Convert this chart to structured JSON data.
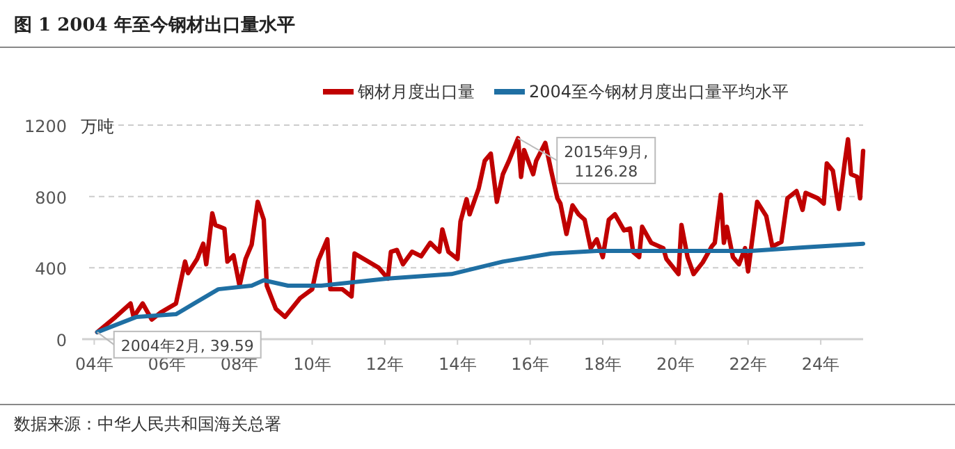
{
  "chart_data": {
    "type": "line",
    "title": "图 1 2004 年至今钢材出口量水平",
    "ylabel": "万吨",
    "annotations": [
      {
        "text": "2004年2月, 39.59",
        "x": "2004-02",
        "y": 39.59
      },
      {
        "text": "2015年9月,\n1126.28",
        "x": "2015-09",
        "y": 1126.28
      },
      "数据来源：中华人民共和国海关总署"
    ],
    "xlim": [
      "2003-09",
      "2025-03"
    ],
    "xticks": [
      {
        "value": "2004-01",
        "label": "04年"
      },
      {
        "value": "2006-01",
        "label": "06年"
      },
      {
        "value": "2008-01",
        "label": "08年"
      },
      {
        "value": "2010-01",
        "label": "10年"
      },
      {
        "value": "2012-01",
        "label": "12年"
      },
      {
        "value": "2014-01",
        "label": "14年"
      },
      {
        "value": "2016-01",
        "label": "16年"
      },
      {
        "value": "2018-01",
        "label": "18年"
      },
      {
        "value": "2020-01",
        "label": "20年"
      },
      {
        "value": "2022-01",
        "label": "22年"
      },
      {
        "value": "2024-01",
        "label": "24年"
      }
    ],
    "ylim": [
      0,
      1200
    ],
    "yticks": [
      0,
      400,
      800,
      1200
    ],
    "grid": "y",
    "legend": "top",
    "line_style": "solid",
    "marker": "none",
    "series": [
      {
        "name": "钢材月度出口量",
        "color": "#c00000",
        "x": [
          "2004-02",
          "2004-08",
          "2005-01",
          "2005-02",
          "2005-05",
          "2005-08",
          "2005-11",
          "2006-04",
          "2006-07",
          "2006-08",
          "2006-11",
          "2007-01",
          "2007-02",
          "2007-04",
          "2007-05",
          "2007-08",
          "2007-09",
          "2007-11",
          "2008-01",
          "2008-03",
          "2008-05",
          "2008-07",
          "2008-09",
          "2008-10",
          "2009-01",
          "2009-04",
          "2009-09",
          "2010-01",
          "2010-03",
          "2010-06",
          "2010-07",
          "2010-11",
          "2011-02",
          "2011-03",
          "2011-07",
          "2011-11",
          "2012-02",
          "2012-03",
          "2012-05",
          "2012-07",
          "2012-10",
          "2013-01",
          "2013-04",
          "2013-07",
          "2013-08",
          "2013-10",
          "2014-01",
          "2014-02",
          "2014-04",
          "2014-05",
          "2014-08",
          "2014-10",
          "2014-12",
          "2015-02",
          "2015-04",
          "2015-06",
          "2015-09",
          "2015-10",
          "2015-11",
          "2016-02",
          "2016-03",
          "2016-06",
          "2016-08",
          "2016-10",
          "2016-11",
          "2017-01",
          "2017-03",
          "2017-05",
          "2017-07",
          "2017-09",
          "2017-11",
          "2018-01",
          "2018-03",
          "2018-05",
          "2018-08",
          "2018-10",
          "2018-11",
          "2019-01",
          "2019-02",
          "2019-05",
          "2019-09",
          "2019-10",
          "2020-02",
          "2020-03",
          "2020-05",
          "2020-07",
          "2020-10",
          "2021-01",
          "2021-02",
          "2021-04",
          "2021-05",
          "2021-06",
          "2021-08",
          "2021-10",
          "2021-12",
          "2022-01",
          "2022-04",
          "2022-07",
          "2022-09",
          "2022-12",
          "2023-02",
          "2023-05",
          "2023-07",
          "2023-08",
          "2023-12",
          "2024-02",
          "2024-03",
          "2024-05",
          "2024-07",
          "2024-09",
          "2024-10",
          "2024-11",
          "2025-01",
          "2025-02",
          "2025-03"
        ],
        "values": [
          39.59,
          124,
          200,
          125,
          200,
          110,
          150,
          200,
          435,
          370,
          450,
          535,
          420,
          705,
          640,
          620,
          435,
          470,
          300,
          450,
          530,
          770,
          670,
          300,
          170,
          125,
          230,
          280,
          440,
          560,
          280,
          280,
          240,
          480,
          440,
          400,
          340,
          490,
          500,
          420,
          490,
          465,
          540,
          490,
          615,
          490,
          450,
          660,
          785,
          700,
          845,
          1000,
          1040,
          770,
          925,
          1000,
          1126.28,
          910,
          1060,
          925,
          1000,
          1100,
          940,
          790,
          760,
          590,
          750,
          700,
          670,
          510,
          560,
          460,
          670,
          700,
          610,
          620,
          490,
          460,
          630,
          540,
          510,
          450,
          365,
          640,
          460,
          365,
          430,
          520,
          540,
          810,
          540,
          630,
          460,
          420,
          510,
          380,
          770,
          690,
          520,
          545,
          790,
          830,
          725,
          820,
          790,
          760,
          985,
          945,
          730,
          1000,
          1120,
          925,
          910,
          790,
          1055
        ]
      },
      {
        "name": "2004至今钢材月度出口量平均水平",
        "color": "#1f6fa3",
        "x": [
          "2004-02",
          "2005-03",
          "2006-04",
          "2006-10",
          "2007-06",
          "2008-05",
          "2008-09",
          "2009-05",
          "2010-04",
          "2012-02",
          "2013-11",
          "2015-04",
          "2016-08",
          "2017-11",
          "2022-02",
          "2023-08",
          "2025-03"
        ],
        "values": [
          39.59,
          125,
          140,
          200,
          280,
          300,
          330,
          300,
          300,
          340,
          365,
          435,
          480,
          495,
          495,
          515,
          535
        ]
      }
    ]
  }
}
